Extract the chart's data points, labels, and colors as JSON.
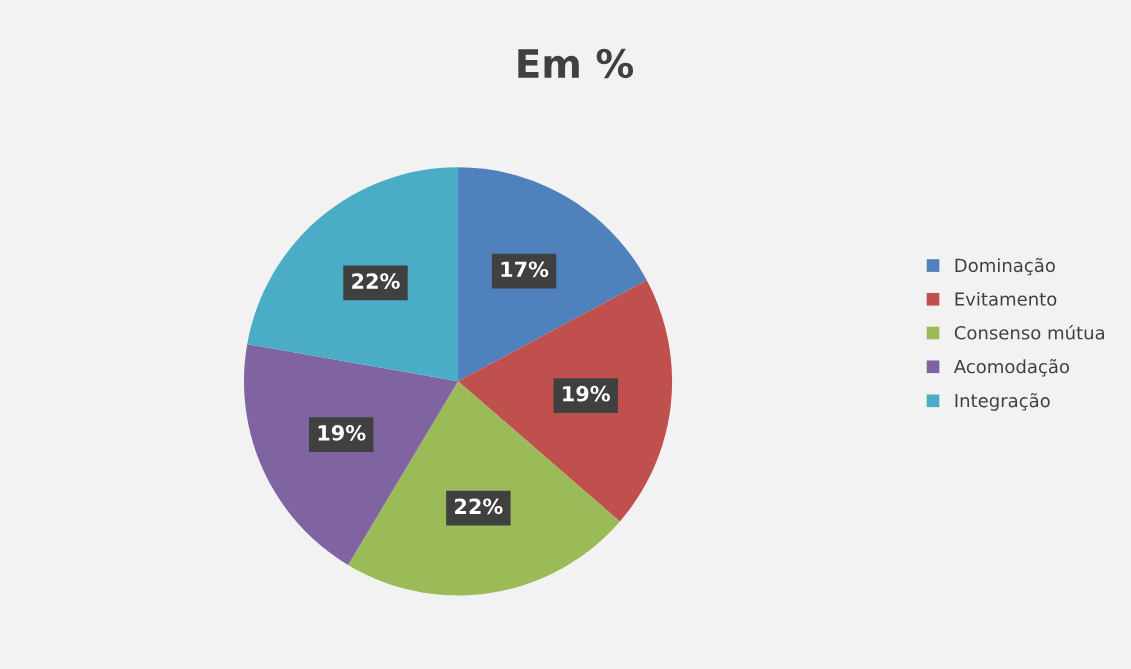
{
  "chart_data": {
    "type": "pie",
    "title": "Em %",
    "categories": [
      "Dominação",
      "Evitamento",
      "Consenso mútua",
      "Acomodação",
      "Integração"
    ],
    "values": [
      17,
      19,
      22,
      19,
      22
    ],
    "colors": [
      "#4f81bd",
      "#c0504d",
      "#9bbb59",
      "#8064a2",
      "#4bacc6"
    ],
    "value_labels": [
      "17%",
      "19%",
      "22%",
      "19%",
      "22%"
    ],
    "legend": "right"
  }
}
